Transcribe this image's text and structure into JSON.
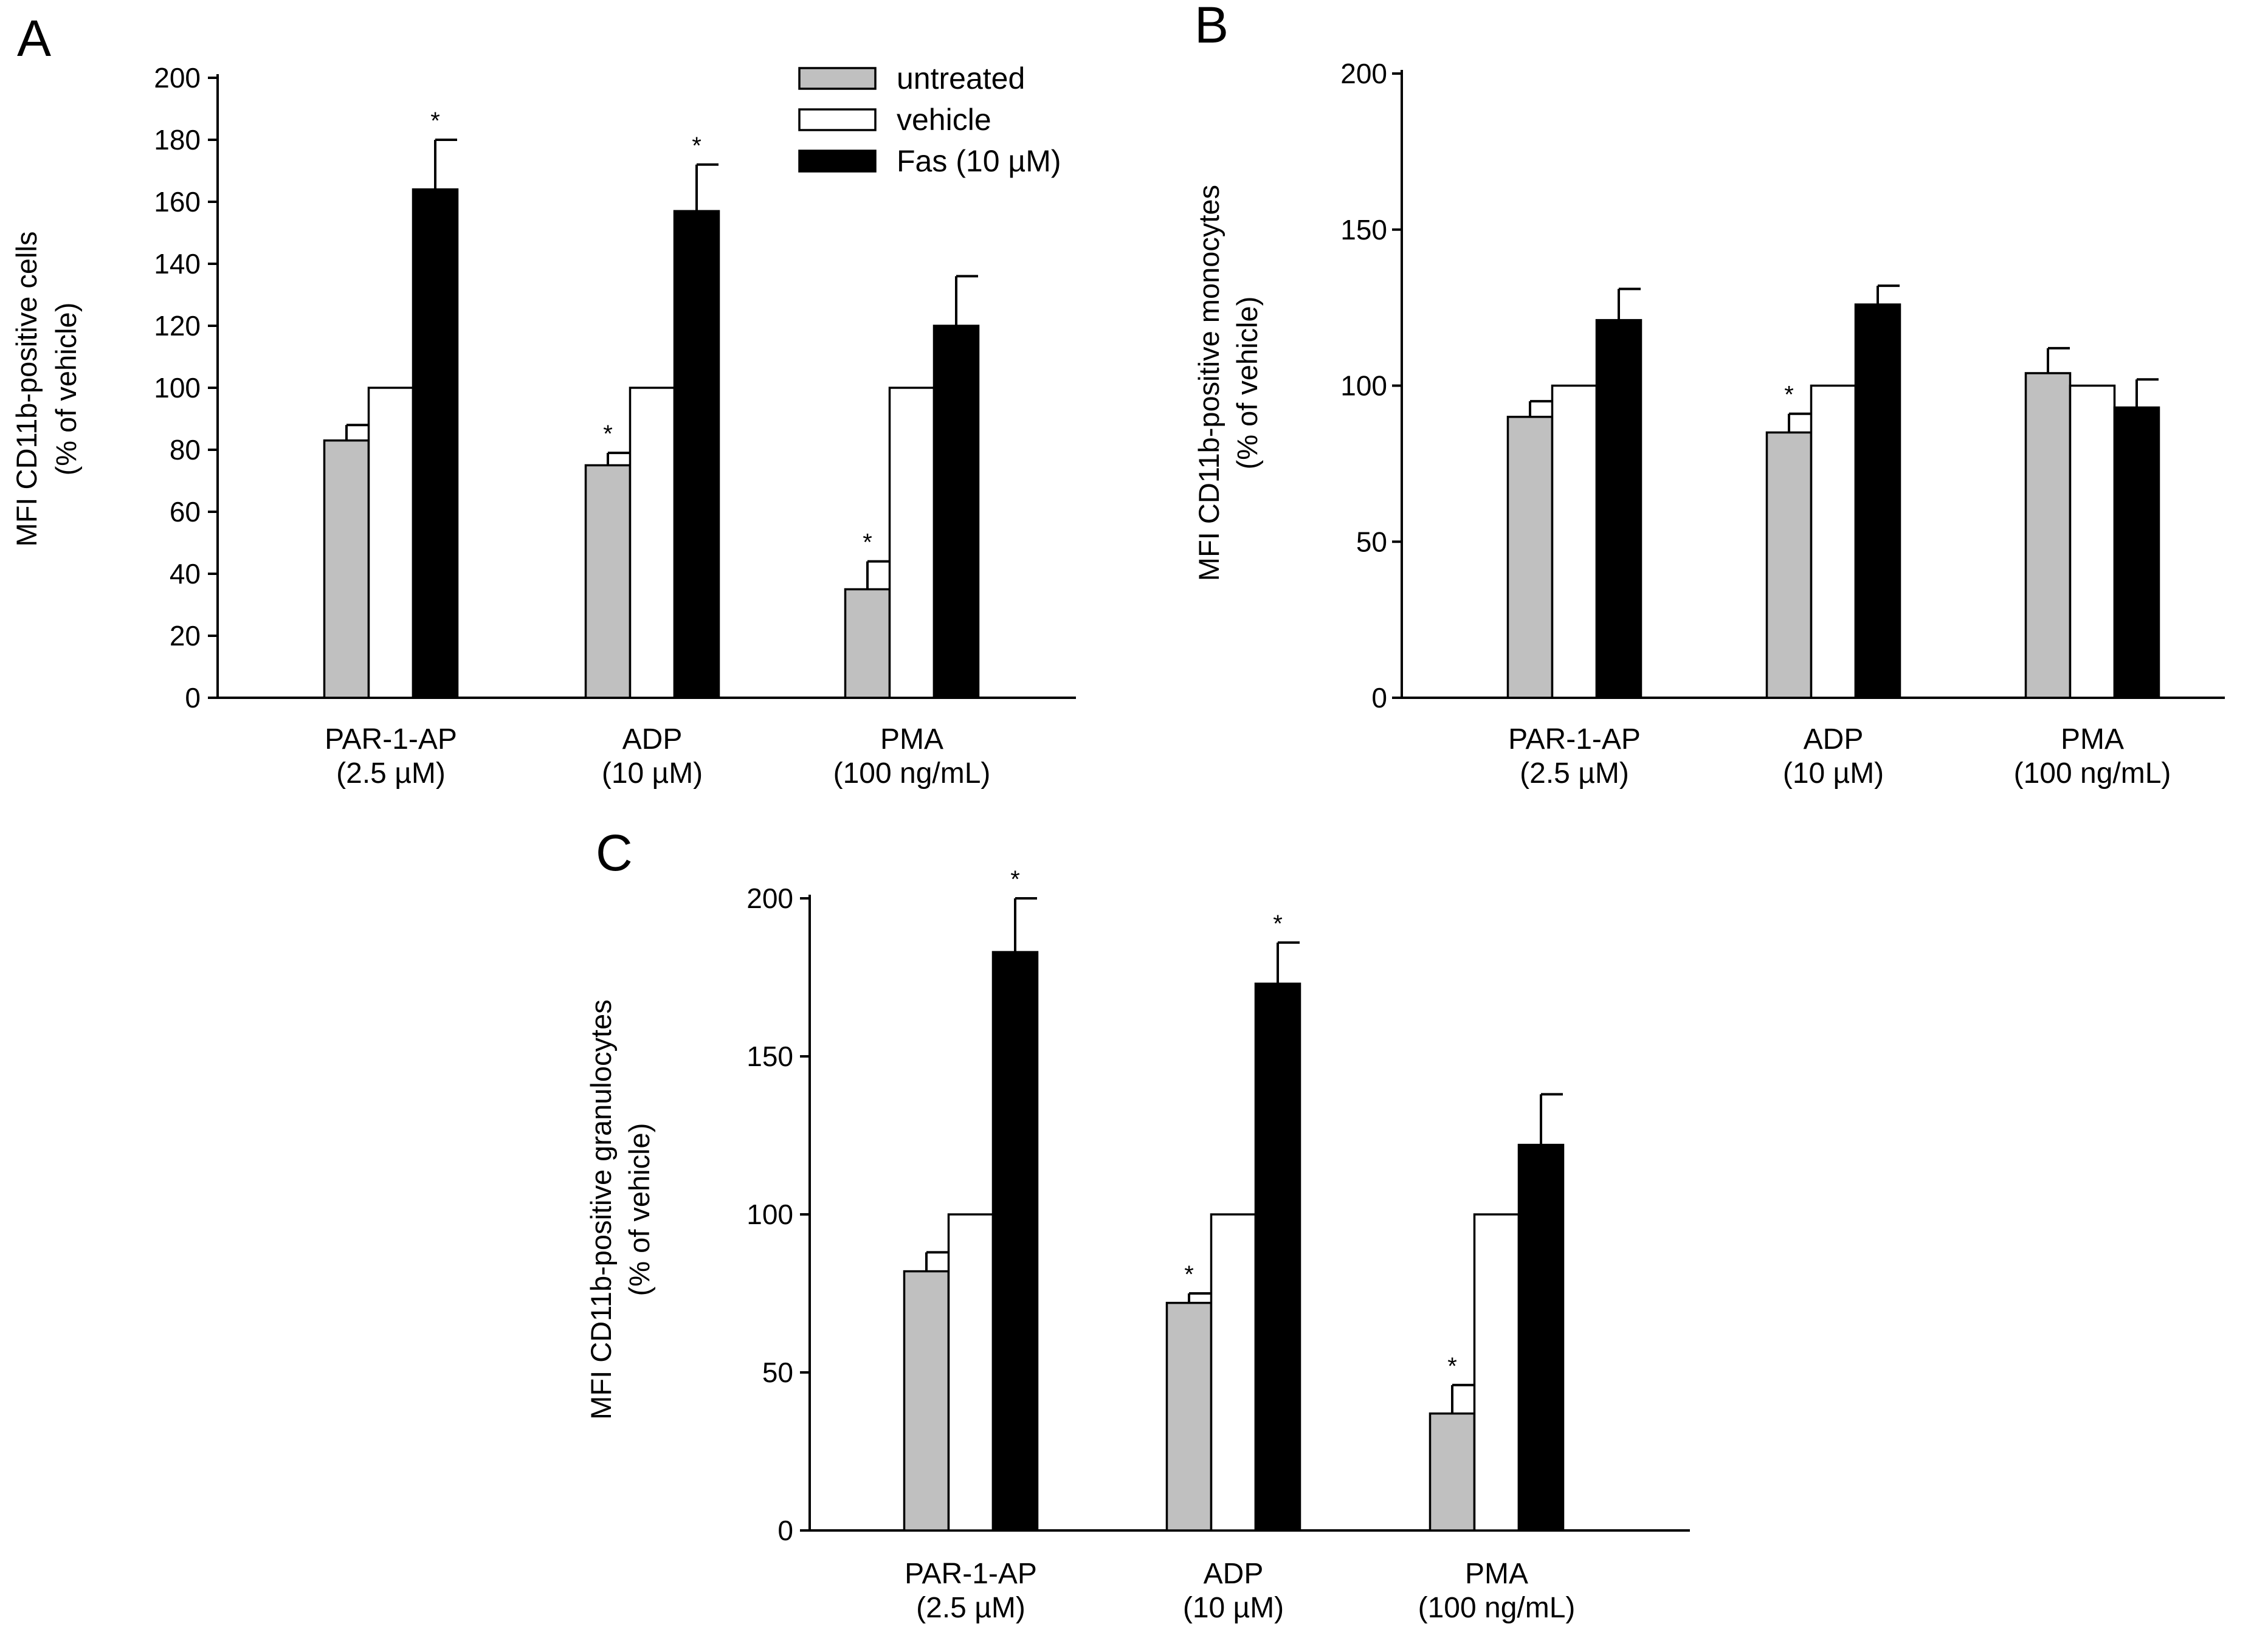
{
  "chart_data": [
    {
      "panel": "A",
      "type": "bar",
      "ylabel": [
        "MFI CD11b-positive cells",
        "(% of vehicle)"
      ],
      "ylim": [
        0,
        200
      ],
      "yticks": [
        0,
        20,
        40,
        60,
        80,
        100,
        120,
        140,
        160,
        180,
        200
      ],
      "categories": [
        [
          "PAR-1-AP",
          "(2.5 µM)"
        ],
        [
          "ADP",
          "(10 µM)"
        ],
        [
          "PMA",
          "(100 ng/mL)"
        ]
      ],
      "legend": [
        {
          "label": "untreated",
          "color": "#c0c0c0"
        },
        {
          "label": "vehicle",
          "color": "#ffffff"
        },
        {
          "label": "Fas (10 µM)",
          "color": "#000000"
        }
      ],
      "series": [
        {
          "name": "untreated",
          "values": [
            83,
            75,
            35
          ],
          "errors": [
            5,
            4,
            9
          ],
          "sig": [
            false,
            true,
            true
          ]
        },
        {
          "name": "vehicle",
          "values": [
            100,
            100,
            100
          ],
          "errors": [
            0,
            0,
            0
          ],
          "sig": [
            false,
            false,
            false
          ]
        },
        {
          "name": "Fas (10 µM)",
          "values": [
            164,
            157,
            120
          ],
          "errors": [
            16,
            15,
            16
          ],
          "sig": [
            true,
            true,
            false
          ]
        }
      ],
      "significance_marker": "*"
    },
    {
      "panel": "B",
      "type": "bar",
      "ylabel": [
        "MFI CD11b-positive monocytes",
        "(% of vehicle)"
      ],
      "ylim": [
        0,
        200
      ],
      "yticks": [
        0,
        50,
        100,
        150,
        200
      ],
      "categories": [
        [
          "PAR-1-AP",
          "(2.5 µM)"
        ],
        [
          "ADP",
          "(10 µM)"
        ],
        [
          "PMA",
          "(100 ng/mL)"
        ]
      ],
      "series": [
        {
          "name": "untreated",
          "values": [
            90,
            85,
            104
          ],
          "errors": [
            5,
            6,
            8
          ],
          "sig": [
            false,
            true,
            false
          ]
        },
        {
          "name": "vehicle",
          "values": [
            100,
            100,
            100
          ],
          "errors": [
            0,
            0,
            0
          ],
          "sig": [
            false,
            false,
            false
          ]
        },
        {
          "name": "Fas (10 µM)",
          "values": [
            121,
            126,
            93
          ],
          "errors": [
            10,
            6,
            9
          ],
          "sig": [
            false,
            false,
            false
          ]
        }
      ],
      "significance_marker": "*"
    },
    {
      "panel": "C",
      "type": "bar",
      "ylabel": [
        "MFI CD11b-positive granulocytes",
        "(% of vehicle)"
      ],
      "ylim": [
        0,
        200
      ],
      "yticks": [
        0,
        50,
        100,
        150,
        200
      ],
      "categories": [
        [
          "PAR-1-AP",
          "(2.5 µM)"
        ],
        [
          "ADP",
          "(10 µM)"
        ],
        [
          "PMA",
          "(100 ng/mL)"
        ]
      ],
      "series": [
        {
          "name": "untreated",
          "values": [
            82,
            72,
            37
          ],
          "errors": [
            6,
            3,
            9
          ],
          "sig": [
            false,
            true,
            true
          ]
        },
        {
          "name": "vehicle",
          "values": [
            100,
            100,
            100
          ],
          "errors": [
            0,
            0,
            0
          ],
          "sig": [
            false,
            false,
            false
          ]
        },
        {
          "name": "Fas (10 µM)",
          "values": [
            183,
            173,
            122
          ],
          "errors": [
            17,
            13,
            16
          ],
          "sig": [
            true,
            true,
            false
          ]
        }
      ],
      "significance_marker": "*"
    }
  ]
}
